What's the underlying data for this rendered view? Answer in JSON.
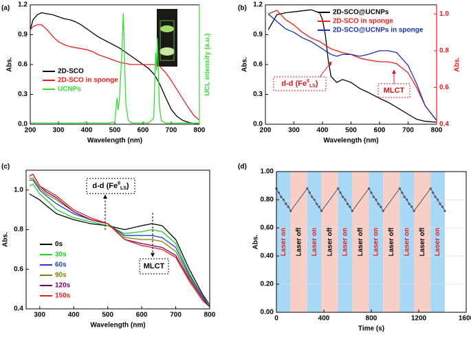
{
  "chart_data": [
    {
      "type": "line",
      "label": "(a)",
      "xlabel": "Wavelength (nm)",
      "ylabel": "Abs.",
      "y2label": "UCL intensity (a.u.)",
      "y2_color": "#33dd33",
      "xlim": [
        200,
        800
      ],
      "xticks": [
        200,
        300,
        400,
        500,
        600,
        700,
        800
      ],
      "ylim": [
        0,
        1.2
      ],
      "yticks": [
        {
          "value": 0,
          "label": "0.0"
        },
        0.3,
        0.6,
        0.9,
        1.2
      ],
      "y2lim": [
        0,
        1
      ],
      "x": [
        200,
        210,
        225,
        240,
        260,
        280,
        300,
        320,
        340,
        360,
        380,
        400,
        420,
        440,
        460,
        480,
        500,
        520,
        540,
        560,
        580,
        600,
        620,
        640,
        660,
        680,
        700,
        720,
        740,
        760,
        780,
        800
      ],
      "series": [
        {
          "name": "2D-SCO",
          "color": "#000000",
          "values": [
            0.95,
            1.05,
            1.1,
            1.12,
            1.11,
            1.1,
            1.08,
            1.06,
            1.05,
            1.03,
            1.0,
            0.96,
            0.92,
            0.88,
            0.85,
            0.82,
            0.79,
            0.76,
            0.72,
            0.68,
            0.64,
            0.6,
            0.56,
            0.5,
            0.4,
            0.27,
            0.15,
            0.08,
            0.04,
            0.02,
            0.01,
            0.01
          ]
        },
        {
          "name": "2D-SCO in sponge",
          "color": "#ee1c1c",
          "values": [
            0.95,
            0.98,
            1.0,
            1.0,
            0.95,
            0.88,
            0.83,
            0.8,
            0.78,
            0.77,
            0.76,
            0.75,
            0.73,
            0.7,
            0.68,
            0.66,
            0.64,
            0.62,
            0.61,
            0.6,
            0.6,
            0.6,
            0.6,
            0.6,
            0.58,
            0.52,
            0.44,
            0.35,
            0.26,
            0.17,
            0.09,
            0.04
          ]
        },
        {
          "name": "UCNPs",
          "color": "#33dd33",
          "axis": "y2",
          "x": [
            200,
            300,
            390,
            398,
            402,
            410,
            480,
            500,
            505,
            508,
            512,
            516,
            525,
            530,
            533,
            536,
            540,
            548,
            560,
            620,
            638,
            642,
            645,
            648,
            651,
            654,
            658,
            665,
            680,
            750,
            800
          ],
          "values": [
            0.01,
            0.01,
            0.01,
            0.02,
            0.01,
            0.01,
            0.01,
            0.02,
            0.15,
            0.22,
            0.12,
            0.2,
            0.6,
            0.93,
            0.7,
            0.4,
            0.15,
            0.03,
            0.01,
            0.01,
            0.05,
            0.35,
            0.6,
            0.45,
            0.72,
            0.5,
            0.15,
            0.03,
            0.01,
            0.01,
            0.01
          ]
        }
      ]
    },
    {
      "type": "line",
      "label": "(b)",
      "xlabel": "Wavelength (nm)",
      "ylabel": "Abs.",
      "y2label": "Abs.",
      "y2_color": "#ee1c1c",
      "xlim": [
        200,
        800
      ],
      "xticks": [
        200,
        300,
        400,
        500,
        600,
        700,
        800
      ],
      "ylim": [
        0,
        1.2
      ],
      "yticks": [
        {
          "value": 0,
          "label": "0.0"
        },
        0.3,
        0.6,
        0.9,
        1.2
      ],
      "y2lim": [
        0.4,
        1.05
      ],
      "y2ticks": [
        0.4,
        0.6,
        0.8,
        {
          "value": 1,
          "label": "1.0"
        }
      ],
      "x": [
        210,
        240,
        270,
        300,
        330,
        360,
        390,
        400,
        410,
        420,
        430,
        450,
        470,
        500,
        530,
        560,
        600,
        630,
        660,
        700,
        730,
        760,
        800
      ],
      "series": [
        {
          "name": "2D-SCO@UCNPs",
          "color": "#000000",
          "values": [
            0.95,
            1.1,
            1.12,
            1.13,
            1.14,
            1.15,
            1.12,
            1.05,
            0.9,
            0.65,
            0.48,
            0.42,
            0.45,
            0.42,
            0.36,
            0.32,
            0.26,
            0.22,
            0.17,
            0.1,
            0.05,
            0.03,
            0.02
          ]
        },
        {
          "name": "2D-SCO in sponge",
          "color": "#ee1c1c",
          "axis": "y2",
          "values": [
            1.0,
            1.02,
            0.97,
            0.94,
            0.9,
            0.87,
            0.85,
            0.84,
            0.83,
            0.82,
            0.81,
            0.8,
            0.79,
            0.78,
            0.76,
            0.75,
            0.74,
            0.74,
            0.73,
            0.68,
            0.6,
            0.5,
            0.42
          ]
        },
        {
          "name": "2D-SCO@UCNPs in sponge",
          "color": "#1c2fb0",
          "axis": "y2",
          "values": [
            1.0,
            0.96,
            0.92,
            0.9,
            0.87,
            0.85,
            0.82,
            0.81,
            0.8,
            0.79,
            0.78,
            0.77,
            0.78,
            0.78,
            0.77,
            0.78,
            0.8,
            0.8,
            0.79,
            0.72,
            0.62,
            0.5,
            0.42
          ]
        }
      ],
      "annotations": [
        {
          "parts": [
            "d-d (Fe",
            "II",
            "LS",
            ")"
          ]
        },
        {
          "parts": [
            "MLCT"
          ]
        }
      ]
    },
    {
      "type": "line",
      "label": "(c)",
      "xlabel": "Wavelength (nm)",
      "ylabel": "Abs.",
      "xlim": [
        260,
        800
      ],
      "xticks": [
        300,
        400,
        500,
        600,
        700,
        800
      ],
      "ylim": [
        0.4,
        1.1
      ],
      "yticks": [
        0.4,
        0.6,
        0.8,
        {
          "value": 1,
          "label": "1.0"
        }
      ],
      "x": [
        270,
        280,
        300,
        320,
        350,
        400,
        450,
        500,
        550,
        600,
        630,
        660,
        700,
        740,
        780,
        800
      ],
      "series": [
        {
          "name": "0s",
          "color": "#000000",
          "values": [
            0.98,
            0.97,
            0.95,
            0.92,
            0.88,
            0.85,
            0.83,
            0.82,
            0.8,
            0.82,
            0.83,
            0.82,
            0.75,
            0.6,
            0.47,
            0.42
          ]
        },
        {
          "name": "30s",
          "color": "#22cc22",
          "values": [
            1.02,
            1.03,
            0.98,
            0.95,
            0.9,
            0.86,
            0.84,
            0.82,
            0.78,
            0.79,
            0.8,
            0.79,
            0.73,
            0.58,
            0.46,
            0.42
          ]
        },
        {
          "name": "60s",
          "color": "#1a3fd6",
          "values": [
            1.05,
            1.05,
            1.0,
            0.97,
            0.93,
            0.88,
            0.85,
            0.83,
            0.77,
            0.77,
            0.77,
            0.76,
            0.71,
            0.57,
            0.46,
            0.41
          ]
        },
        {
          "name": "90s",
          "color": "#808000",
          "values": [
            1.06,
            1.06,
            1.01,
            0.98,
            0.95,
            0.89,
            0.85,
            0.83,
            0.76,
            0.75,
            0.75,
            0.74,
            0.69,
            0.56,
            0.45,
            0.41
          ]
        },
        {
          "name": "120s",
          "color": "#800060",
          "values": [
            1.07,
            1.08,
            1.02,
            0.99,
            0.96,
            0.89,
            0.85,
            0.83,
            0.75,
            0.73,
            0.72,
            0.71,
            0.67,
            0.55,
            0.45,
            0.41
          ]
        },
        {
          "name": "150s",
          "color": "#e02020",
          "values": [
            1.07,
            1.08,
            1.02,
            1.0,
            0.97,
            0.9,
            0.86,
            0.83,
            0.75,
            0.72,
            0.71,
            0.7,
            0.66,
            0.54,
            0.44,
            0.41
          ]
        }
      ],
      "annotations": [
        {
          "parts": [
            "d-d (Fe",
            "II",
            "LS",
            ")"
          ]
        },
        {
          "parts": [
            "MLCT"
          ]
        }
      ]
    },
    {
      "type": "line",
      "label": "(d)",
      "xlabel": "Time (s)",
      "ylabel": "Abs.",
      "grid": true,
      "markers": true,
      "xlim": [
        0,
        1600
      ],
      "xticks": [
        0,
        400,
        800,
        1200,
        1600
      ],
      "ylim": [
        0,
        1
      ],
      "yticks": [
        {
          "value": 0,
          "label": "0.00"
        },
        {
          "value": 0.2,
          "label": "0.20"
        },
        {
          "value": 0.4,
          "label": "0.40"
        },
        {
          "value": 0.6,
          "label": "0.60"
        },
        {
          "value": 0.8,
          "label": "0.80"
        },
        {
          "value": 1,
          "label": "1.00"
        }
      ],
      "bands": [
        {
          "start": 0,
          "end": 120,
          "label": "Laser on",
          "color": "#a8d8f5",
          "text_color": "#e8201e"
        },
        {
          "start": 120,
          "end": 260,
          "label": "Laser off",
          "color": "#f8cfc6",
          "text_color": "#000000"
        },
        {
          "start": 260,
          "end": 380,
          "label": "Laser on",
          "color": "#a8d8f5",
          "text_color": "#e8201e"
        },
        {
          "start": 380,
          "end": 520,
          "label": "Laser off",
          "color": "#f8cfc6",
          "text_color": "#000000"
        },
        {
          "start": 520,
          "end": 640,
          "label": "Laser on",
          "color": "#a8d8f5",
          "text_color": "#e8201e"
        },
        {
          "start": 640,
          "end": 780,
          "label": "Laser off",
          "color": "#f8cfc6",
          "text_color": "#000000"
        },
        {
          "start": 780,
          "end": 900,
          "label": "Laser on",
          "color": "#a8d8f5",
          "text_color": "#e8201e"
        },
        {
          "start": 900,
          "end": 1040,
          "label": "Laser off",
          "color": "#f8cfc6",
          "text_color": "#000000"
        },
        {
          "start": 1040,
          "end": 1160,
          "label": "Laser on",
          "color": "#a8d8f5",
          "text_color": "#e8201e"
        },
        {
          "start": 1160,
          "end": 1300,
          "label": "Laser off",
          "color": "#f8cfc6",
          "text_color": "#000000"
        },
        {
          "start": 1300,
          "end": 1420,
          "label": "Laser on",
          "color": "#a8d8f5",
          "text_color": "#e8201e"
        }
      ],
      "series": [
        {
          "color": "#555566",
          "x": [
            0,
            20,
            40,
            60,
            80,
            100,
            120,
            260,
            280,
            300,
            320,
            340,
            360,
            380,
            520,
            540,
            560,
            580,
            600,
            620,
            640,
            780,
            800,
            820,
            840,
            860,
            880,
            900,
            1040,
            1060,
            1080,
            1100,
            1120,
            1140,
            1160,
            1300,
            1320,
            1340,
            1360,
            1380,
            1400,
            1420
          ],
          "values": [
            0.88,
            0.85,
            0.82,
            0.8,
            0.77,
            0.75,
            0.72,
            0.88,
            0.85,
            0.82,
            0.8,
            0.77,
            0.75,
            0.72,
            0.88,
            0.85,
            0.82,
            0.8,
            0.77,
            0.75,
            0.72,
            0.88,
            0.85,
            0.82,
            0.8,
            0.77,
            0.75,
            0.72,
            0.88,
            0.85,
            0.82,
            0.8,
            0.77,
            0.75,
            0.72,
            0.88,
            0.85,
            0.82,
            0.8,
            0.77,
            0.75,
            0.72
          ]
        }
      ]
    }
  ]
}
